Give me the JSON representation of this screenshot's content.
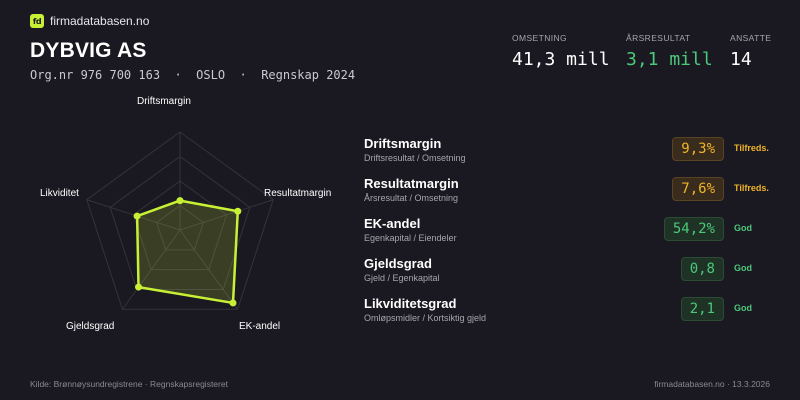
{
  "brand": {
    "logo_text": "fd",
    "name": "firmadatabasen.no"
  },
  "company": {
    "name": "DYBVIG AS",
    "meta": "Org.nr 976 700 163  ·  OSLO  ·  Regnskap 2024"
  },
  "kpis": [
    {
      "label": "OMSETNING",
      "value": "41,3 mill",
      "color": "#ffffff"
    },
    {
      "label": "ÅRSRESULTAT",
      "value": "3,1 mill",
      "color": "#4cc87a"
    },
    {
      "label": "ANSATTE",
      "value": "14",
      "color": "#ffffff"
    }
  ],
  "radar": {
    "axes": [
      "Driftsmargin",
      "Resultatmargin",
      "EK-andel",
      "Gjeldsgrad",
      "Likviditet"
    ],
    "scores": [
      0.3,
      0.62,
      0.92,
      0.72,
      0.46
    ],
    "accent": "#c8f135"
  },
  "metrics": [
    {
      "title": "Driftsmargin",
      "subtitle": "Driftsresultat / Omsetning",
      "value": "9,3%",
      "status": "Tilfreds.",
      "level": "warn"
    },
    {
      "title": "Resultatmargin",
      "subtitle": "Årsresultat / Omsetning",
      "value": "7,6%",
      "status": "Tilfreds.",
      "level": "warn"
    },
    {
      "title": "EK-andel",
      "subtitle": "Egenkapital / Eiendeler",
      "value": "54,2%",
      "status": "God",
      "level": "good"
    },
    {
      "title": "Gjeldsgrad",
      "subtitle": "Gjeld / Egenkapital",
      "value": "0,8",
      "status": "God",
      "level": "good"
    },
    {
      "title": "Likviditetsgrad",
      "subtitle": "Omløpsmidler / Kortsiktig gjeld",
      "value": "2,1",
      "status": "God",
      "level": "good"
    }
  ],
  "footer": {
    "source": "Kilde: Brønnøysundregistrene · Regnskapsregisteret",
    "site_date": "firmadatabasen.no · 13.3.2026"
  },
  "colors": {
    "background": "#1a1820",
    "accent": "#c8f135",
    "good": "#4cc87a",
    "warn": "#f0b429"
  }
}
